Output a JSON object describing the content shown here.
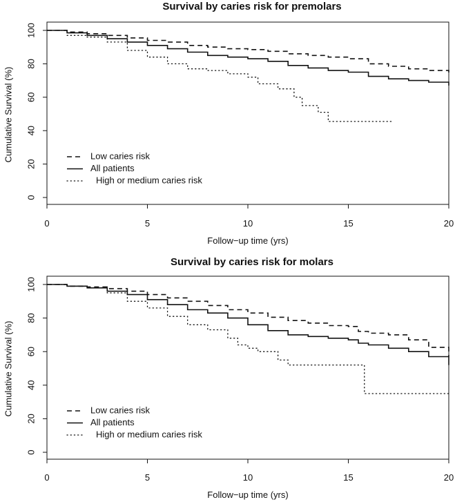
{
  "chart_data": [
    {
      "type": "line",
      "title": "Survival by caries risk for premolars",
      "xlabel": "Follow−up time (yrs)",
      "ylabel": "Cumulative Survival (%)",
      "xlim": [
        0,
        20
      ],
      "ylim": [
        0,
        100
      ],
      "xticks": [
        0,
        5,
        10,
        15,
        20
      ],
      "yticks": [
        0,
        20,
        40,
        60,
        80,
        100
      ],
      "legend_position": "bottom-left",
      "series": [
        {
          "name": "Low caries risk",
          "style": "dashed",
          "points": [
            [
              0,
              100
            ],
            [
              1,
              99
            ],
            [
              2,
              98
            ],
            [
              3,
              97
            ],
            [
              4,
              95.5
            ],
            [
              5,
              94
            ],
            [
              6,
              93
            ],
            [
              7,
              91
            ],
            [
              8,
              90
            ],
            [
              9,
              89
            ],
            [
              10,
              88.5
            ],
            [
              11,
              87.5
            ],
            [
              12,
              86
            ],
            [
              13,
              85
            ],
            [
              14,
              84
            ],
            [
              15,
              83
            ],
            [
              16,
              80
            ],
            [
              17,
              78.5
            ],
            [
              18,
              77
            ],
            [
              19,
              76
            ],
            [
              20,
              74
            ]
          ]
        },
        {
          "name": "All patients",
          "style": "solid",
          "points": [
            [
              0,
              100
            ],
            [
              1,
              98.5
            ],
            [
              2,
              97
            ],
            [
              3,
              95
            ],
            [
              4,
              93
            ],
            [
              5,
              91
            ],
            [
              6,
              89
            ],
            [
              7,
              87
            ],
            [
              8,
              85
            ],
            [
              9,
              84
            ],
            [
              10,
              83
            ],
            [
              11,
              81.5
            ],
            [
              12,
              79
            ],
            [
              13,
              77.5
            ],
            [
              14,
              76
            ],
            [
              15,
              75
            ],
            [
              16,
              72.5
            ],
            [
              17,
              71
            ],
            [
              18,
              70
            ],
            [
              19,
              69
            ],
            [
              20,
              67
            ]
          ]
        },
        {
          "name": "High or medium caries risk",
          "style": "dotted",
          "points": [
            [
              0,
              100
            ],
            [
              1,
              97
            ],
            [
              2,
              96
            ],
            [
              3,
              93
            ],
            [
              4,
              88
            ],
            [
              5,
              84
            ],
            [
              6,
              80
            ],
            [
              7,
              77
            ],
            [
              8,
              76
            ],
            [
              9,
              74
            ],
            [
              10,
              72
            ],
            [
              10.5,
              68
            ],
            [
              11.5,
              65
            ],
            [
              12.3,
              60
            ],
            [
              12.7,
              55
            ],
            [
              13.5,
              51
            ],
            [
              14,
              45.5
            ],
            [
              17.2,
              45.5
            ]
          ]
        }
      ]
    },
    {
      "type": "line",
      "title": "Survival by caries risk for molars",
      "xlabel": "Follow−up time (yrs)",
      "ylabel": "Cumulative Survival (%)",
      "xlim": [
        0,
        20
      ],
      "ylim": [
        0,
        100
      ],
      "xticks": [
        0,
        5,
        10,
        15,
        20
      ],
      "yticks": [
        0,
        20,
        40,
        60,
        80,
        100
      ],
      "legend_position": "bottom-left",
      "series": [
        {
          "name": "Low caries risk",
          "style": "dashed",
          "points": [
            [
              0,
              100
            ],
            [
              1,
              99
            ],
            [
              2,
              98.5
            ],
            [
              3,
              97.5
            ],
            [
              4,
              96
            ],
            [
              5,
              94
            ],
            [
              6,
              92
            ],
            [
              7,
              90
            ],
            [
              8,
              87.5
            ],
            [
              9,
              85
            ],
            [
              10,
              83
            ],
            [
              11,
              80.5
            ],
            [
              12,
              78.5
            ],
            [
              13,
              77
            ],
            [
              14,
              75.5
            ],
            [
              15,
              75
            ],
            [
              15.5,
              72
            ],
            [
              16,
              71
            ],
            [
              17,
              70
            ],
            [
              18,
              67
            ],
            [
              19,
              62.5
            ],
            [
              20,
              57
            ]
          ]
        },
        {
          "name": "All patients",
          "style": "solid",
          "points": [
            [
              0,
              100
            ],
            [
              1,
              99
            ],
            [
              2,
              98
            ],
            [
              3,
              96
            ],
            [
              4,
              94
            ],
            [
              5,
              91
            ],
            [
              6,
              88
            ],
            [
              7,
              85
            ],
            [
              8,
              83
            ],
            [
              9,
              80
            ],
            [
              10,
              76
            ],
            [
              11,
              72.5
            ],
            [
              12,
              70
            ],
            [
              13,
              69
            ],
            [
              14,
              68
            ],
            [
              15,
              67
            ],
            [
              15.5,
              65
            ],
            [
              16,
              64
            ],
            [
              17,
              62
            ],
            [
              18,
              60
            ],
            [
              19,
              57
            ],
            [
              20,
              52
            ]
          ]
        },
        {
          "name": "High or medium caries risk",
          "style": "dotted",
          "points": [
            [
              0,
              100
            ],
            [
              1,
              99
            ],
            [
              2,
              98
            ],
            [
              3,
              95
            ],
            [
              4,
              90
            ],
            [
              5,
              86
            ],
            [
              6,
              81
            ],
            [
              7,
              76
            ],
            [
              8,
              73
            ],
            [
              9,
              68
            ],
            [
              9.5,
              64
            ],
            [
              10,
              62
            ],
            [
              10.5,
              60
            ],
            [
              11.5,
              55
            ],
            [
              12,
              52
            ],
            [
              15.8,
              52
            ],
            [
              15.8,
              35
            ],
            [
              20,
              35
            ]
          ]
        }
      ]
    }
  ]
}
